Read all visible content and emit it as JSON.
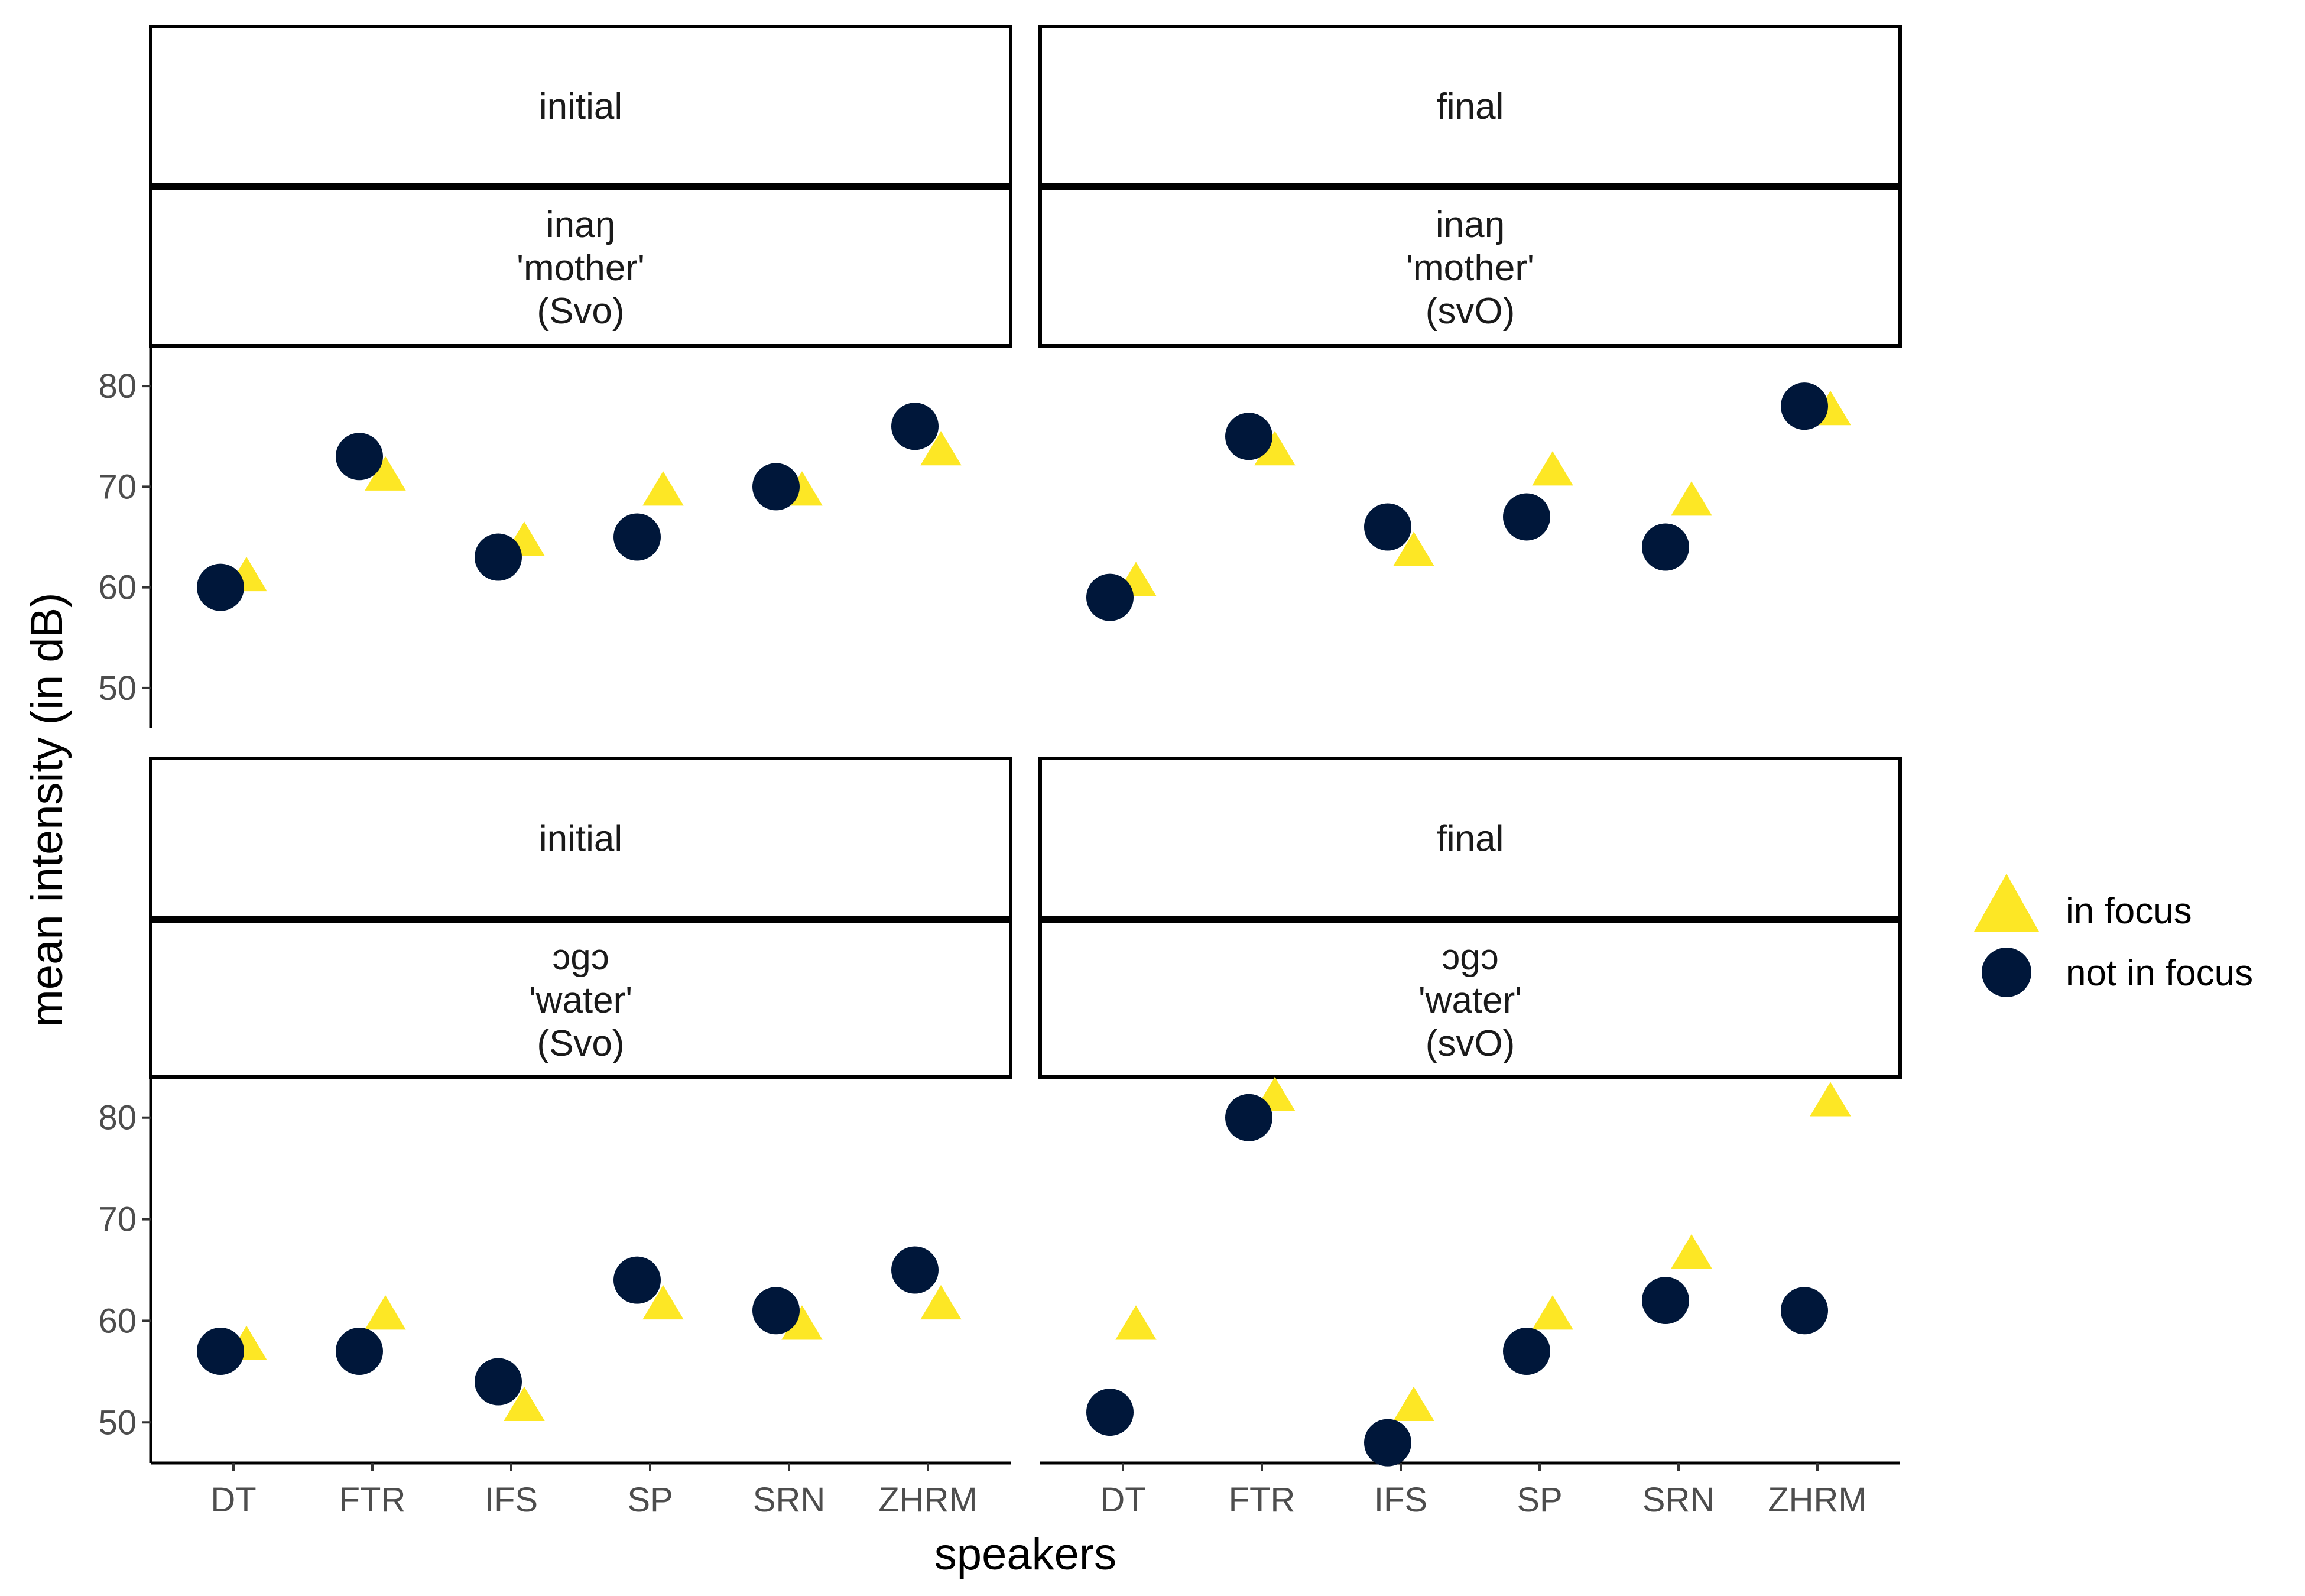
{
  "chart_data": {
    "type": "scatter",
    "xlabel": "speakers",
    "ylabel": "mean intensity (in dB)",
    "categories": [
      "DT",
      "FTR",
      "IFS",
      "SP",
      "SRN",
      "ZHRM"
    ],
    "ylim": [
      46,
      84
    ],
    "yticks": [
      50,
      60,
      70,
      80
    ],
    "grid": false,
    "legend": {
      "placement": "right",
      "entries": [
        {
          "name": "in focus",
          "shape": "triangle",
          "color": "#FDE725"
        },
        {
          "name": "not in focus",
          "shape": "circle",
          "color": "#00173A"
        }
      ]
    },
    "panels": [
      {
        "strip_top": "initial",
        "strip_bottom": [
          "inaŋ",
          "'mother'",
          "(Svo)"
        ],
        "series": [
          {
            "name": "in focus",
            "values": [
              61,
              71,
              64.5,
              69.5,
              69.5,
              73.5
            ]
          },
          {
            "name": "not in focus",
            "values": [
              60,
              73,
              63,
              65,
              70,
              76
            ]
          }
        ]
      },
      {
        "strip_top": "final",
        "strip_bottom": [
          "inaŋ",
          "'mother'",
          "(svO)"
        ],
        "series": [
          {
            "name": "in focus",
            "values": [
              60.5,
              73.5,
              63.5,
              71.5,
              68.5,
              77.5
            ]
          },
          {
            "name": "not in focus",
            "values": [
              59,
              75,
              66,
              67,
              64,
              78
            ]
          }
        ]
      },
      {
        "strip_top": "initial",
        "strip_bottom": [
          "ɔgɔ",
          "'water'",
          "(Svo)"
        ],
        "series": [
          {
            "name": "in focus",
            "values": [
              57.5,
              60.5,
              51.5,
              61.5,
              59.5,
              61.5
            ]
          },
          {
            "name": "not in focus",
            "values": [
              57,
              57,
              54,
              64,
              61,
              65
            ]
          }
        ]
      },
      {
        "strip_top": "final",
        "strip_bottom": [
          "ɔgɔ",
          "'water'",
          "(svO)"
        ],
        "series": [
          {
            "name": "in focus",
            "values": [
              59.5,
              82,
              51.5,
              60.5,
              66.5,
              81.5
            ]
          },
          {
            "name": "not in focus",
            "values": [
              51,
              80,
              48,
              57,
              62,
              61
            ]
          }
        ]
      }
    ]
  }
}
